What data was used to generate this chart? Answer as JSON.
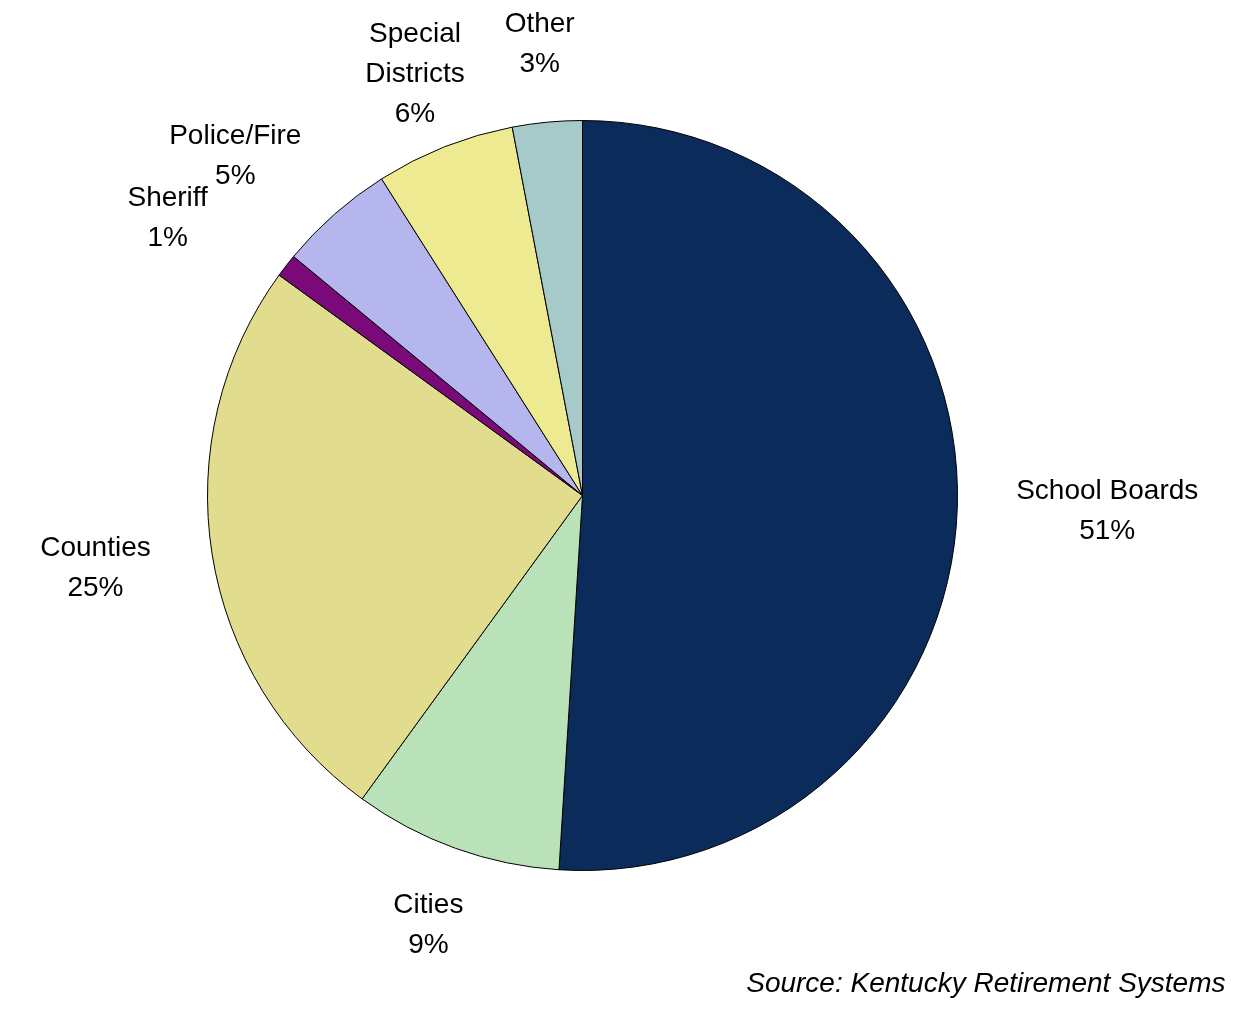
{
  "chart_data": {
    "type": "pie",
    "categories": [
      "School Boards",
      "Cities",
      "Counties",
      "Sheriff",
      "Police/Fire",
      "Special Districts",
      "Other"
    ],
    "values": [
      51,
      9,
      25,
      1,
      5,
      6,
      3
    ],
    "value_labels": [
      "51%",
      "9%",
      "25%",
      "1%",
      "5%",
      "6%",
      "3%"
    ],
    "colors": [
      "#0b2c5a",
      "#b9e2b9",
      "#e2dc8e",
      "#7a0a7a",
      "#b6b6ee",
      "#eeea92",
      "#a6caca"
    ],
    "annotations": [
      "Source: Kentucky Retirement Systems"
    ]
  }
}
